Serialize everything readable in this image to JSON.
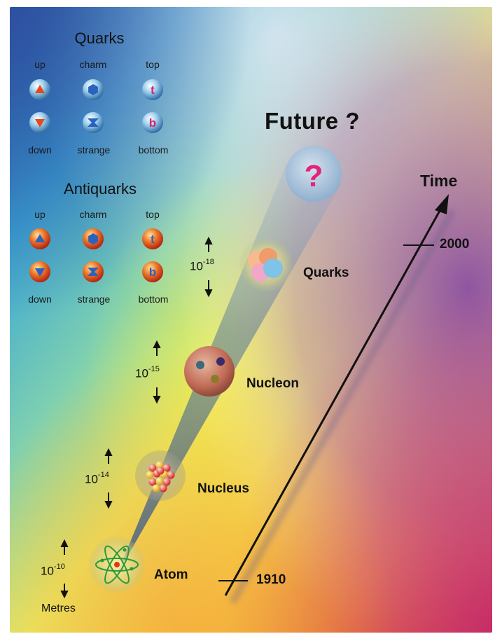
{
  "quarks": {
    "heading": "Quarks",
    "top_labels": [
      "up",
      "charm",
      "top"
    ],
    "bottom_labels": [
      "down",
      "strange",
      "bottom"
    ],
    "icons": [
      "triangle-up",
      "hexagon",
      "letter-t",
      "triangle-down",
      "bowtie",
      "letter-b"
    ],
    "letter_t": "t",
    "letter_b": "b",
    "ball_color": "#8ec3e6"
  },
  "antiquarks": {
    "heading": "Antiquarks",
    "top_labels": [
      "up",
      "charm",
      "top"
    ],
    "bottom_labels": [
      "down",
      "strange",
      "bottom"
    ],
    "icons": [
      "triangle-up",
      "hexagon",
      "letter-t",
      "triangle-down",
      "bowtie",
      "letter-b"
    ],
    "letter_t": "t",
    "letter_b": "b",
    "ball_color": "#e0461c"
  },
  "levels": [
    {
      "name": "Atom",
      "scale_base": "10",
      "scale_exp": "-10"
    },
    {
      "name": "Nucleus",
      "scale_base": "10",
      "scale_exp": "-14"
    },
    {
      "name": "Nucleon",
      "scale_base": "10",
      "scale_exp": "-15"
    },
    {
      "name": "Quarks",
      "scale_base": "10",
      "scale_exp": "-18"
    }
  ],
  "future": {
    "title": "Future ?",
    "symbol": "?"
  },
  "timeline": {
    "label": "Time",
    "start_year": "1910",
    "end_year": "2000"
  },
  "units": "Metres"
}
